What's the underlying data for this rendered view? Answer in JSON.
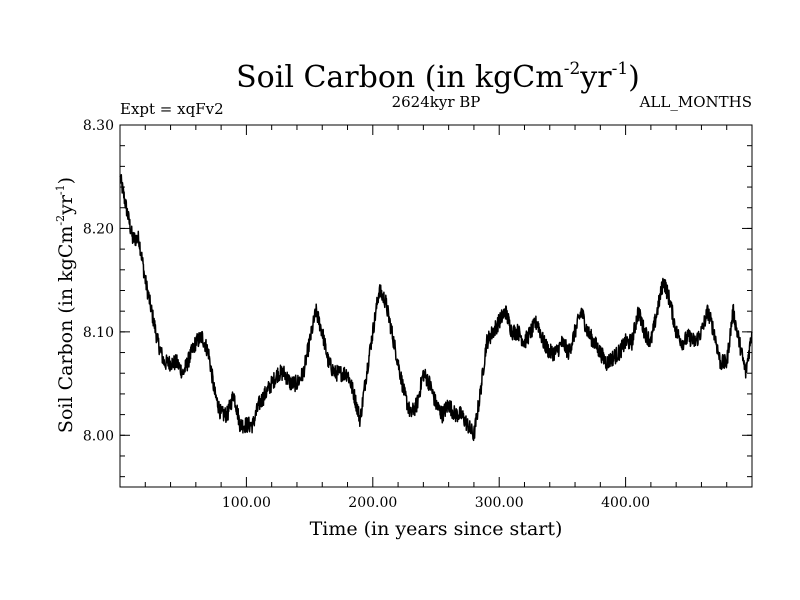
{
  "chart_data": {
    "type": "line",
    "title": {
      "main": "Soil Carbon (in kgCm",
      "sup1": "-2",
      "mid": "yr",
      "sup2": "-1",
      "end": ")"
    },
    "subtitle_left": "Expt = xqFv2",
    "subtitle_center": "2624kyr BP",
    "subtitle_right": "ALL_MONTHS",
    "xlabel": "Time (in years since start)",
    "ylabel": {
      "main": "Soil Carbon (in kgCm",
      "sup1": "-2",
      "mid": "yr",
      "sup2": "-1",
      "end": ")"
    },
    "xlim": [
      0,
      500
    ],
    "ylim": [
      7.95,
      8.3
    ],
    "x_ticks": [
      100,
      200,
      300,
      400
    ],
    "x_tick_labels": [
      "100.00",
      "200.00",
      "300.00",
      "400.00"
    ],
    "y_ticks": [
      8.0,
      8.1,
      8.2,
      8.3
    ],
    "y_tick_labels": [
      "8.00",
      "8.10",
      "8.20",
      "8.30"
    ],
    "series": [
      {
        "name": "soil carbon",
        "color": "#000000",
        "x": [
          0,
          5,
          10,
          15,
          20,
          25,
          30,
          35,
          40,
          45,
          50,
          55,
          60,
          65,
          70,
          75,
          80,
          85,
          90,
          95,
          100,
          105,
          110,
          115,
          120,
          125,
          130,
          135,
          140,
          145,
          150,
          155,
          160,
          165,
          170,
          175,
          180,
          185,
          190,
          195,
          200,
          205,
          210,
          215,
          220,
          225,
          230,
          235,
          240,
          245,
          250,
          255,
          260,
          265,
          270,
          275,
          280,
          285,
          290,
          295,
          300,
          305,
          310,
          315,
          320,
          325,
          330,
          335,
          340,
          345,
          350,
          355,
          360,
          365,
          370,
          375,
          380,
          385,
          390,
          395,
          400,
          405,
          410,
          415,
          420,
          425,
          430,
          435,
          440,
          445,
          450,
          455,
          460,
          465,
          470,
          475,
          480,
          485,
          490,
          495,
          500
        ],
        "values": [
          8.25,
          8.22,
          8.19,
          8.19,
          8.15,
          8.12,
          8.09,
          8.07,
          8.07,
          8.07,
          8.06,
          8.075,
          8.09,
          8.095,
          8.08,
          8.04,
          8.02,
          8.02,
          8.04,
          8.01,
          8.01,
          8.01,
          8.03,
          8.04,
          8.05,
          8.06,
          8.06,
          8.05,
          8.05,
          8.06,
          8.09,
          8.12,
          8.1,
          8.07,
          8.06,
          8.06,
          8.06,
          8.04,
          8.015,
          8.06,
          8.1,
          8.14,
          8.13,
          8.1,
          8.07,
          8.04,
          8.02,
          8.03,
          8.06,
          8.05,
          8.03,
          8.02,
          8.03,
          8.02,
          8.02,
          8.01,
          8.0,
          8.04,
          8.09,
          8.1,
          8.11,
          8.12,
          8.1,
          8.1,
          8.09,
          8.1,
          8.11,
          8.09,
          8.08,
          8.08,
          8.09,
          8.08,
          8.1,
          8.12,
          8.1,
          8.09,
          8.08,
          8.07,
          8.075,
          8.08,
          8.09,
          8.09,
          8.12,
          8.1,
          8.09,
          8.12,
          8.15,
          8.13,
          8.1,
          8.09,
          8.095,
          8.09,
          8.1,
          8.12,
          8.1,
          8.07,
          8.07,
          8.12,
          8.09,
          8.06,
          8.1
        ]
      }
    ]
  }
}
